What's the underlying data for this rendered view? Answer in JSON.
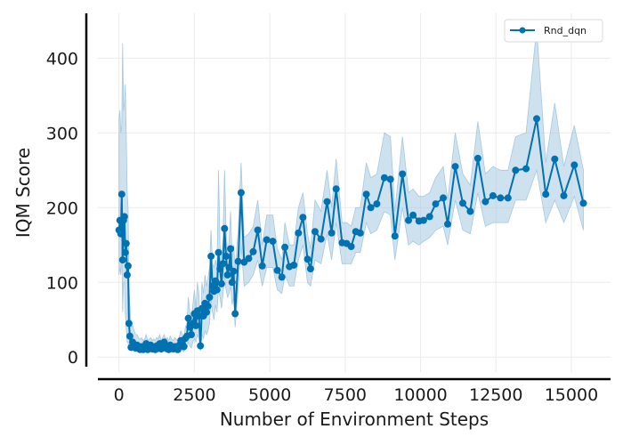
{
  "chart_data": {
    "type": "line",
    "xlabel": "Number of Environment Steps",
    "ylabel": "IQM Score",
    "xlim": [
      -700,
      16300
    ],
    "ylim": [
      -20,
      460
    ],
    "xticks": [
      0,
      2500,
      5000,
      7500,
      10000,
      12500,
      15000
    ],
    "yticks": [
      0,
      100,
      200,
      300,
      400
    ],
    "grid": true,
    "legend": "top-right",
    "colors": {
      "line": "#0072b2",
      "band": "#a6c8e0"
    },
    "series": [
      {
        "name": "Rnd_dqn",
        "points": [
          [
            0,
            170,
            110,
            320
          ],
          [
            30,
            183,
            120,
            330
          ],
          [
            60,
            165,
            110,
            300
          ],
          [
            90,
            218,
            150,
            310
          ],
          [
            120,
            130,
            60,
            420
          ],
          [
            150,
            183,
            100,
            330
          ],
          [
            180,
            188,
            100,
            340
          ],
          [
            210,
            140,
            60,
            365
          ],
          [
            240,
            152,
            40,
            300
          ],
          [
            270,
            110,
            20,
            220
          ],
          [
            300,
            122,
            20,
            200
          ],
          [
            330,
            45,
            10,
            100
          ],
          [
            360,
            28,
            10,
            70
          ],
          [
            400,
            13,
            8,
            40
          ],
          [
            450,
            20,
            9,
            42
          ],
          [
            500,
            14,
            8,
            35
          ],
          [
            550,
            12,
            8,
            30
          ],
          [
            600,
            16,
            8,
            30
          ],
          [
            650,
            12,
            8,
            26
          ],
          [
            700,
            10,
            6,
            24
          ],
          [
            750,
            14,
            7,
            26
          ],
          [
            800,
            10,
            6,
            22
          ],
          [
            850,
            12,
            6,
            24
          ],
          [
            900,
            18,
            8,
            30
          ],
          [
            950,
            10,
            6,
            22
          ],
          [
            1000,
            12,
            6,
            24
          ],
          [
            1050,
            16,
            8,
            26
          ],
          [
            1100,
            11,
            6,
            22
          ],
          [
            1150,
            13,
            7,
            24
          ],
          [
            1200,
            10,
            6,
            22
          ],
          [
            1250,
            15,
            7,
            26
          ],
          [
            1300,
            12,
            6,
            24
          ],
          [
            1350,
            18,
            8,
            30
          ],
          [
            1400,
            11,
            6,
            22
          ],
          [
            1450,
            14,
            7,
            26
          ],
          [
            1500,
            20,
            9,
            30
          ],
          [
            1550,
            12,
            6,
            24
          ],
          [
            1600,
            15,
            7,
            26
          ],
          [
            1650,
            10,
            6,
            22
          ],
          [
            1700,
            16,
            8,
            28
          ],
          [
            1750,
            13,
            7,
            24
          ],
          [
            1800,
            11,
            6,
            22
          ],
          [
            1850,
            14,
            7,
            26
          ],
          [
            1900,
            12,
            6,
            24
          ],
          [
            1950,
            10,
            6,
            22
          ],
          [
            2000,
            16,
            8,
            28
          ],
          [
            2050,
            22,
            10,
            35
          ],
          [
            2100,
            18,
            9,
            30
          ],
          [
            2150,
            14,
            7,
            26
          ],
          [
            2200,
            25,
            12,
            40
          ],
          [
            2250,
            28,
            12,
            45
          ],
          [
            2300,
            52,
            20,
            80
          ],
          [
            2350,
            40,
            15,
            60
          ],
          [
            2400,
            30,
            12,
            50
          ],
          [
            2450,
            45,
            20,
            70
          ],
          [
            2500,
            58,
            25,
            90
          ],
          [
            2550,
            42,
            20,
            65
          ],
          [
            2600,
            62,
            30,
            100
          ],
          [
            2650,
            55,
            25,
            85
          ],
          [
            2700,
            15,
            8,
            30
          ],
          [
            2750,
            65,
            30,
            100
          ],
          [
            2800,
            55,
            25,
            85
          ],
          [
            2850,
            72,
            35,
            110
          ],
          [
            2900,
            60,
            30,
            95
          ],
          [
            2950,
            68,
            35,
            105
          ],
          [
            3000,
            80,
            45,
            120
          ],
          [
            3050,
            135,
            80,
            170
          ],
          [
            3100,
            95,
            60,
            125
          ],
          [
            3150,
            88,
            50,
            120
          ],
          [
            3200,
            102,
            70,
            130
          ],
          [
            3250,
            90,
            60,
            120
          ],
          [
            3300,
            140,
            90,
            250
          ],
          [
            3350,
            118,
            80,
            150
          ],
          [
            3400,
            98,
            65,
            130
          ],
          [
            3450,
            125,
            85,
            160
          ],
          [
            3500,
            172,
            110,
            250
          ],
          [
            3550,
            135,
            90,
            170
          ],
          [
            3600,
            110,
            80,
            140
          ],
          [
            3650,
            120,
            85,
            155
          ],
          [
            3700,
            145,
            95,
            195
          ],
          [
            3750,
            100,
            70,
            130
          ],
          [
            3800,
            115,
            80,
            150
          ],
          [
            3850,
            58,
            40,
            120
          ],
          [
            3950,
            128,
            90,
            170
          ],
          [
            4050,
            220,
            150,
            260
          ],
          [
            4150,
            127,
            95,
            160
          ],
          [
            4300,
            132,
            100,
            165
          ],
          [
            4450,
            141,
            110,
            175
          ],
          [
            4600,
            170,
            130,
            210
          ],
          [
            4750,
            122,
            95,
            150
          ],
          [
            4900,
            157,
            120,
            190
          ],
          [
            5100,
            155,
            120,
            190
          ],
          [
            5250,
            116,
            90,
            145
          ],
          [
            5400,
            107,
            85,
            130
          ],
          [
            5500,
            147,
            110,
            180
          ],
          [
            5650,
            121,
            95,
            150
          ],
          [
            5800,
            123,
            95,
            150
          ],
          [
            5950,
            166,
            130,
            200
          ],
          [
            6100,
            187,
            150,
            220
          ],
          [
            6250,
            131,
            100,
            165
          ],
          [
            6350,
            118,
            95,
            145
          ],
          [
            6500,
            168,
            130,
            210
          ],
          [
            6700,
            158,
            125,
            195
          ],
          [
            6900,
            208,
            165,
            250
          ],
          [
            7050,
            166,
            130,
            200
          ],
          [
            7200,
            225,
            180,
            265
          ],
          [
            7400,
            153,
            125,
            180
          ],
          [
            7550,
            152,
            125,
            180
          ],
          [
            7700,
            148,
            125,
            175
          ],
          [
            7850,
            168,
            140,
            200
          ],
          [
            8000,
            166,
            140,
            200
          ],
          [
            8200,
            218,
            180,
            260
          ],
          [
            8350,
            200,
            165,
            240
          ],
          [
            8550,
            205,
            170,
            245
          ],
          [
            8800,
            240,
            195,
            300
          ],
          [
            9000,
            238,
            190,
            295
          ],
          [
            9150,
            162,
            130,
            195
          ],
          [
            9400,
            245,
            200,
            295
          ],
          [
            9600,
            183,
            150,
            220
          ],
          [
            9750,
            190,
            155,
            225
          ],
          [
            9950,
            182,
            150,
            215
          ],
          [
            10100,
            183,
            155,
            215
          ],
          [
            10300,
            188,
            160,
            220
          ],
          [
            10500,
            205,
            170,
            240
          ],
          [
            10750,
            213,
            175,
            255
          ],
          [
            10900,
            178,
            150,
            210
          ],
          [
            11150,
            255,
            210,
            300
          ],
          [
            11400,
            206,
            170,
            245
          ],
          [
            11650,
            195,
            165,
            230
          ],
          [
            11900,
            266,
            220,
            315
          ],
          [
            12150,
            208,
            175,
            245
          ],
          [
            12400,
            216,
            180,
            255
          ],
          [
            12650,
            213,
            180,
            250
          ],
          [
            12900,
            213,
            180,
            250
          ],
          [
            13150,
            250,
            210,
            295
          ],
          [
            13500,
            252,
            210,
            300
          ],
          [
            13850,
            319,
            250,
            440
          ],
          [
            14150,
            218,
            180,
            260
          ],
          [
            14450,
            265,
            210,
            340
          ],
          [
            14750,
            216,
            180,
            255
          ],
          [
            15100,
            257,
            215,
            310
          ],
          [
            15400,
            206,
            170,
            250
          ]
        ]
      }
    ]
  }
}
